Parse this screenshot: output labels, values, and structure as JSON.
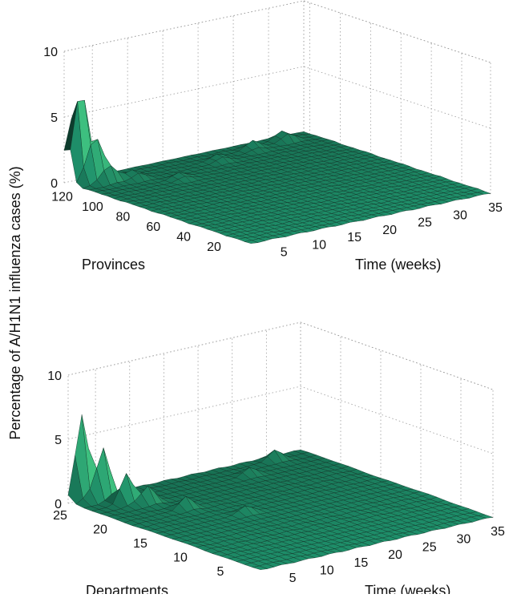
{
  "y_axis_label": "Percentage of A/H1N1 influenza cases (%)",
  "colors": {
    "surface_dark": "#0b3326",
    "surface_base": "#1e8f6a",
    "surface_light": "#3ec07f",
    "mesh_line": "#0e2a20",
    "grid": "#9a9a9a"
  },
  "chart_data": [
    {
      "type": "surface3d",
      "xlabel": "Time (weeks)",
      "ylabel": "Provinces",
      "zlabel": "Percentage of A/H1N1 influenza cases (%)",
      "x_ticks": [
        5,
        10,
        15,
        20,
        25,
        30,
        35
      ],
      "y_ticks": [
        20,
        40,
        60,
        80,
        100,
        120
      ],
      "z_ticks": [
        0,
        5,
        10
      ],
      "xlim": [
        1,
        35
      ],
      "ylim": [
        1,
        124
      ],
      "zlim": [
        0,
        10
      ],
      "grid": true,
      "peaks": [
        {
          "week": 2,
          "region": 122,
          "value": 6.1
        },
        {
          "week": 3,
          "region": 119,
          "value": 3.8
        },
        {
          "week": 4,
          "region": 116,
          "value": 2.0
        },
        {
          "week": 5,
          "region": 113,
          "value": 1.2
        },
        {
          "week": 8,
          "region": 110,
          "value": 0.8
        },
        {
          "week": 12,
          "region": 98,
          "value": 0.5
        },
        {
          "week": 20,
          "region": 110,
          "value": 0.6
        },
        {
          "week": 26,
          "region": 115,
          "value": 0.7
        },
        {
          "week": 31,
          "region": 118,
          "value": 0.9
        }
      ]
    },
    {
      "type": "surface3d",
      "xlabel": "Time (weeks)",
      "ylabel": "Departments",
      "zlabel": "Percentage of A/H1N1 influenza cases (%)",
      "x_ticks": [
        5,
        10,
        15,
        20,
        25,
        30,
        35
      ],
      "y_ticks": [
        5,
        10,
        15,
        20,
        25
      ],
      "z_ticks": [
        0,
        5,
        10
      ],
      "xlim": [
        1,
        35
      ],
      "ylim": [
        1,
        25
      ],
      "zlim": [
        0,
        10
      ],
      "grid": true,
      "peaks": [
        {
          "week": 3,
          "region": 25,
          "value": 6.6
        },
        {
          "week": 5,
          "region": 24,
          "value": 3.9
        },
        {
          "week": 6,
          "region": 22,
          "value": 2.3
        },
        {
          "week": 8,
          "region": 21,
          "value": 1.3
        },
        {
          "week": 10,
          "region": 18,
          "value": 0.9
        },
        {
          "week": 14,
          "region": 14,
          "value": 0.6
        },
        {
          "week": 24,
          "region": 22,
          "value": 0.6
        },
        {
          "week": 30,
          "region": 24,
          "value": 0.8
        }
      ]
    }
  ]
}
